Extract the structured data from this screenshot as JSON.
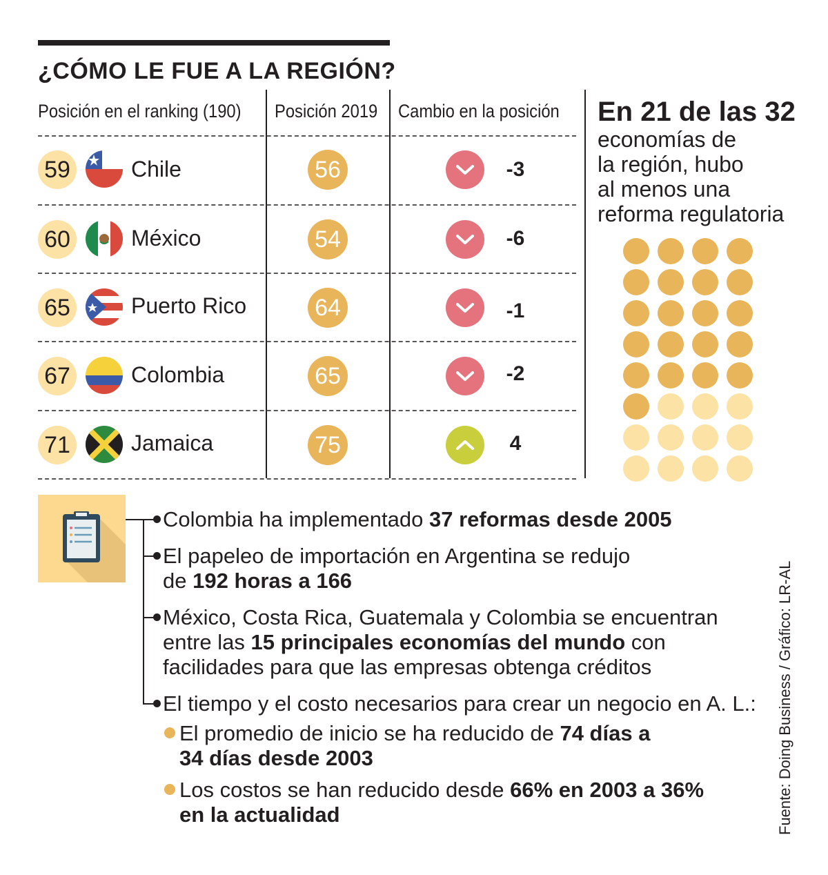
{
  "title": "¿CÓMO LE FUE A LA REGIÓN?",
  "columns": {
    "ranking": "Posición en el ranking (190)",
    "pos2019": "Posición 2019",
    "change": "Cambio en la posición"
  },
  "rows": [
    {
      "rank": "59",
      "country": "Chile",
      "pos2019": "56",
      "change": "-3",
      "direction": "down"
    },
    {
      "rank": "60",
      "country": "México",
      "pos2019": "54",
      "change": "-6",
      "direction": "down"
    },
    {
      "rank": "65",
      "country": "Puerto Rico",
      "pos2019": "64",
      "change": "-1",
      "direction": "down"
    },
    {
      "rank": "67",
      "country": "Colombia",
      "pos2019": "65",
      "change": "-2",
      "direction": "down"
    },
    {
      "rank": "71",
      "country": "Jamaica",
      "pos2019": "75",
      "change": "4",
      "direction": "up"
    }
  ],
  "highlight": {
    "heading": "En 21 de las 32",
    "lines": [
      "economías de",
      "la región, hubo",
      "al menos una",
      "reforma regulatoria"
    ],
    "filled": 21,
    "total": 32
  },
  "bullets": {
    "b1": {
      "text": "Colombia ha implementado ",
      "bold": "37 reformas desde 2005"
    },
    "b2": {
      "line1": "El papeleo de importación en Argentina se redujo",
      "pre": "de ",
      "bold": "192 horas a 166"
    },
    "b3": {
      "line1": "México, Costa Rica, Guatemala y Colombia se encuentran",
      "pre": "entre las ",
      "bold": "15 principales economías del mundo",
      "post": " con",
      "line3": "facilidades para que las empresas obtenga créditos"
    },
    "b4": {
      "text": "El tiempo y el costo necesarios para crear un negocio en A. L.:"
    },
    "s1": {
      "pre": "El promedio de inicio se ha reducido de ",
      "bold1": "74 días a",
      "bold2": "34 días desde 2003"
    },
    "s2": {
      "pre": "Los costos se han reducido desde ",
      "bold1": "66% en 2003 a 36%",
      "bold2": "en la actualidad"
    }
  },
  "source": "Fuente: Doing Business / Gráfico: LR-AL",
  "colors": {
    "rank_fill": "#fde2a6",
    "pos_fill": "#e8b55a",
    "down_fill": "#e5737e",
    "up_fill": "#c9cf3c",
    "dot_filled": "#e8b55a",
    "dot_empty": "#fde2a6"
  }
}
